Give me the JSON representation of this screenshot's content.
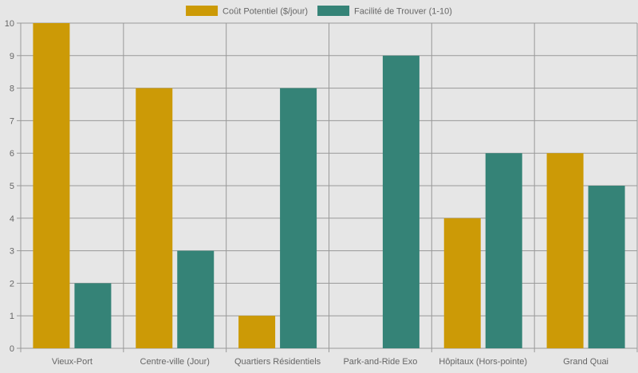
{
  "chart_data": {
    "type": "bar",
    "title": "",
    "xlabel": "",
    "ylabel": "",
    "ylim": [
      0,
      10
    ],
    "yticks": [
      "0",
      "1",
      "2",
      "3",
      "4",
      "5",
      "6",
      "7",
      "8",
      "9",
      "10"
    ],
    "legend_position": "top-center",
    "grid": true,
    "categories": [
      "Vieux-Port",
      "Centre-ville (Jour)",
      "Quartiers Résidentiels",
      "Park-and-Ride Exo",
      "Hôpitaux (Hors-pointe)",
      "Grand Quai"
    ],
    "series": [
      {
        "name": "Coût Potentiel ($/jour)",
        "color": "#cc9a06",
        "values": [
          10,
          8,
          1,
          0,
          4,
          6
        ]
      },
      {
        "name": "Facilité de Trouver (1-10)",
        "color": "#358377",
        "values": [
          2,
          3,
          8,
          9,
          6,
          5
        ]
      }
    ]
  }
}
